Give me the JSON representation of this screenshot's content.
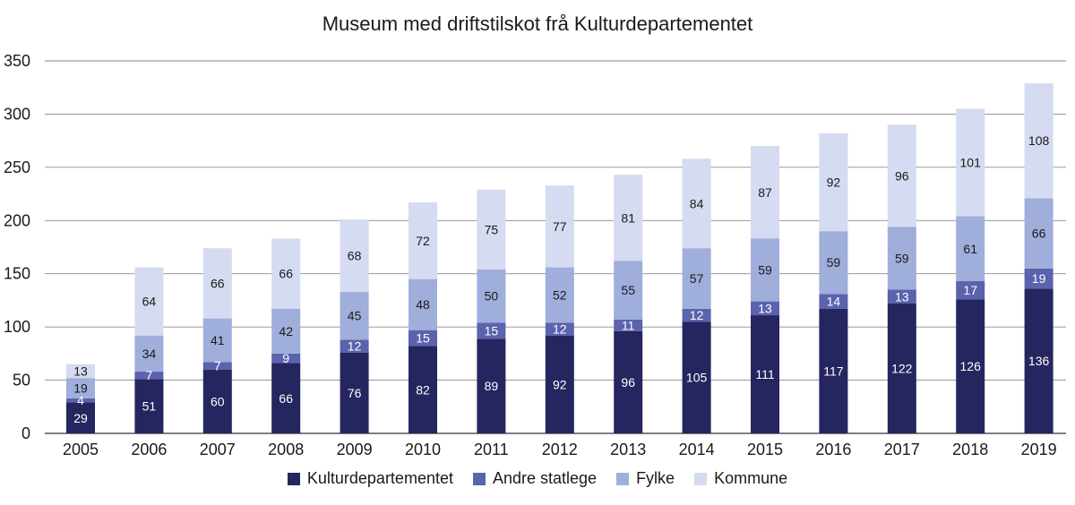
{
  "chart_data": {
    "type": "bar",
    "stacked": true,
    "title": "Museum med driftstilskot frå Kulturdepartementet",
    "xlabel": "",
    "ylabel": "",
    "ylim": [
      0,
      350
    ],
    "yticks": [
      "0",
      "50",
      "100",
      "150",
      "200",
      "250",
      "300",
      "350"
    ],
    "grid": true,
    "legend_position": "bottom",
    "categories": [
      "2005",
      "2006",
      "2007",
      "2008",
      "2009",
      "2010",
      "2011",
      "2012",
      "2013",
      "2014",
      "2015",
      "2016",
      "2017",
      "2018",
      "2019"
    ],
    "series": [
      {
        "name": "Kulturdepartementet",
        "color": "#25255f",
        "label_color": "#ffffff",
        "values": [
          29,
          51,
          60,
          66,
          76,
          82,
          89,
          92,
          96,
          105,
          111,
          117,
          122,
          126,
          136
        ]
      },
      {
        "name": "Andre statlege",
        "color": "#5b63ad",
        "label_color": "#ffffff",
        "values": [
          4,
          7,
          7,
          9,
          12,
          15,
          15,
          12,
          11,
          12,
          13,
          14,
          13,
          17,
          19
        ]
      },
      {
        "name": "Fylke",
        "color": "#9faedb",
        "label_color": "#1a1a1a",
        "values": [
          19,
          34,
          41,
          42,
          45,
          48,
          50,
          52,
          55,
          57,
          59,
          59,
          59,
          61,
          66
        ]
      },
      {
        "name": "Kommune",
        "color": "#d5dbf0",
        "label_color": "#1a1a1a",
        "values": [
          13,
          64,
          66,
          66,
          68,
          72,
          75,
          77,
          81,
          84,
          87,
          92,
          96,
          101,
          108
        ]
      }
    ]
  }
}
